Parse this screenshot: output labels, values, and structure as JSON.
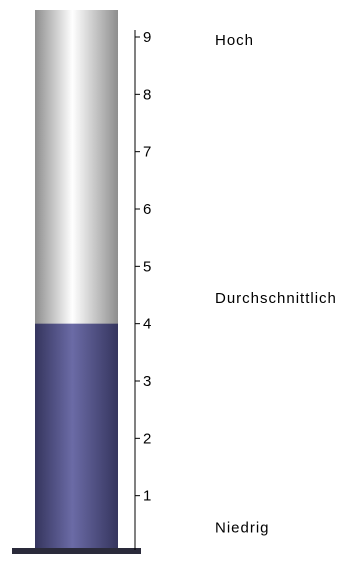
{
  "chart_data": {
    "type": "thermometer",
    "value": 4,
    "ylim": [
      0,
      9
    ],
    "ticks": [
      "1",
      "2",
      "3",
      "4",
      "5",
      "6",
      "7",
      "8",
      "9"
    ],
    "levels": [
      {
        "label": "Hoch",
        "value": 9
      },
      {
        "label": "Durchschnittlich",
        "value": 4.5
      },
      {
        "label": "Niedrig",
        "value": 0.5
      }
    ],
    "colors": {
      "fill": "#55558f",
      "empty": "#cfcfcf",
      "axis": "#000000"
    }
  }
}
